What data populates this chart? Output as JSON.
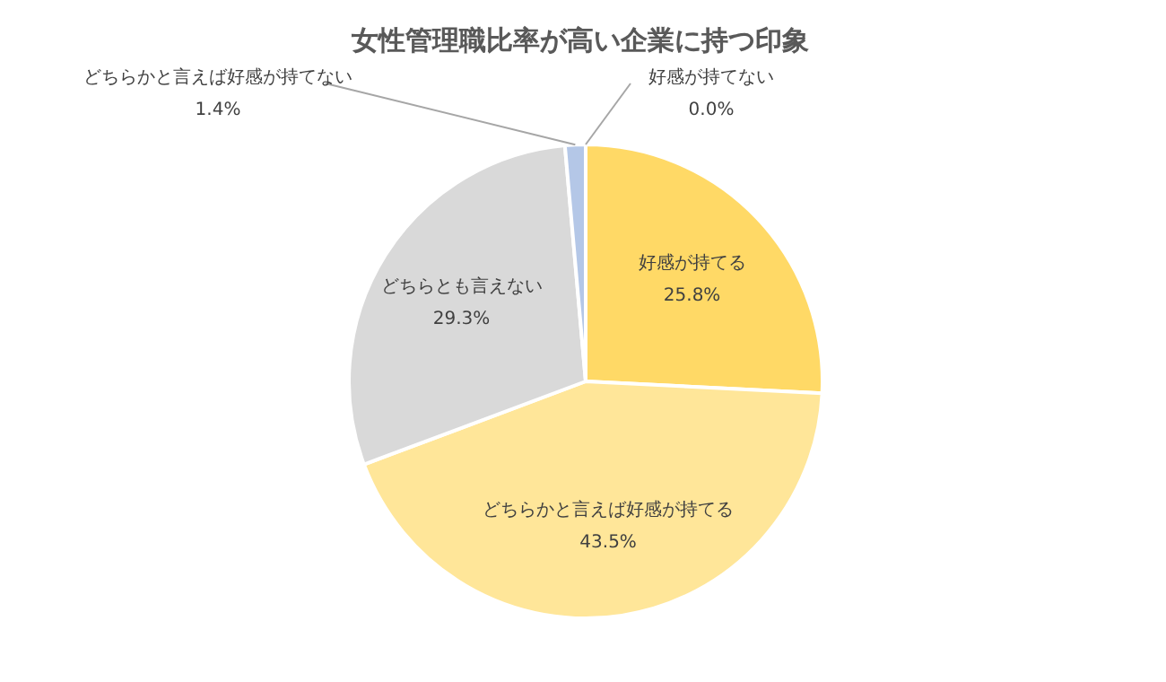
{
  "chart_data": {
    "type": "pie",
    "title": "女性管理職比率が高い企業に持つ印象",
    "categories": [
      "好感が持てる",
      "どちらかと言えば好感が持てる",
      "どちらとも言えない",
      "どちらかと言えば好感が持てない",
      "好感が持てない"
    ],
    "values": [
      25.8,
      43.5,
      29.3,
      1.4,
      0.0
    ],
    "value_labels": [
      "25.8%",
      "43.5%",
      "29.3%",
      "1.4%",
      "0.0%"
    ],
    "colors": [
      "#ffd966",
      "#ffe699",
      "#d9d9d9",
      "#b4c7e7",
      "#f4b183"
    ]
  }
}
